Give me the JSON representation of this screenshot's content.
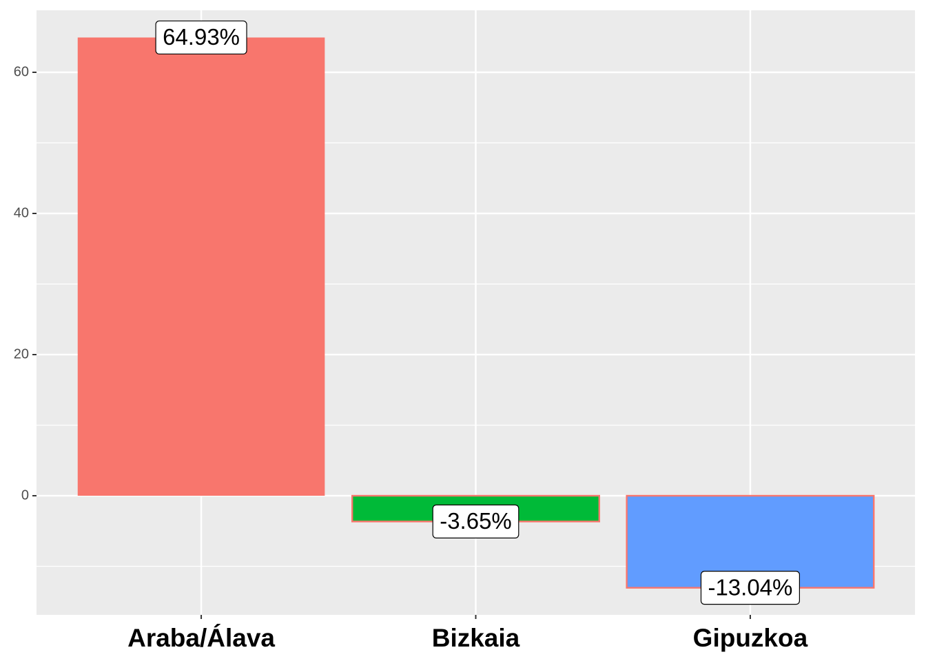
{
  "chart_data": {
    "type": "bar",
    "categories": [
      "Araba/Álava",
      "Bizkaia",
      "Gipuzkoa"
    ],
    "values": [
      64.93,
      -3.65,
      -13.04
    ],
    "value_labels": [
      "64.93%",
      "-3.65%",
      "-13.04%"
    ],
    "colors": [
      "#F8766D",
      "#00BA38",
      "#619CFF"
    ],
    "edgecolor": "#F8766D",
    "ylim": [
      -16.88,
      68.78
    ],
    "yticks": [
      0,
      20,
      40,
      60
    ],
    "minor_yticks": [
      -10,
      10,
      30,
      50
    ],
    "grid": true
  }
}
